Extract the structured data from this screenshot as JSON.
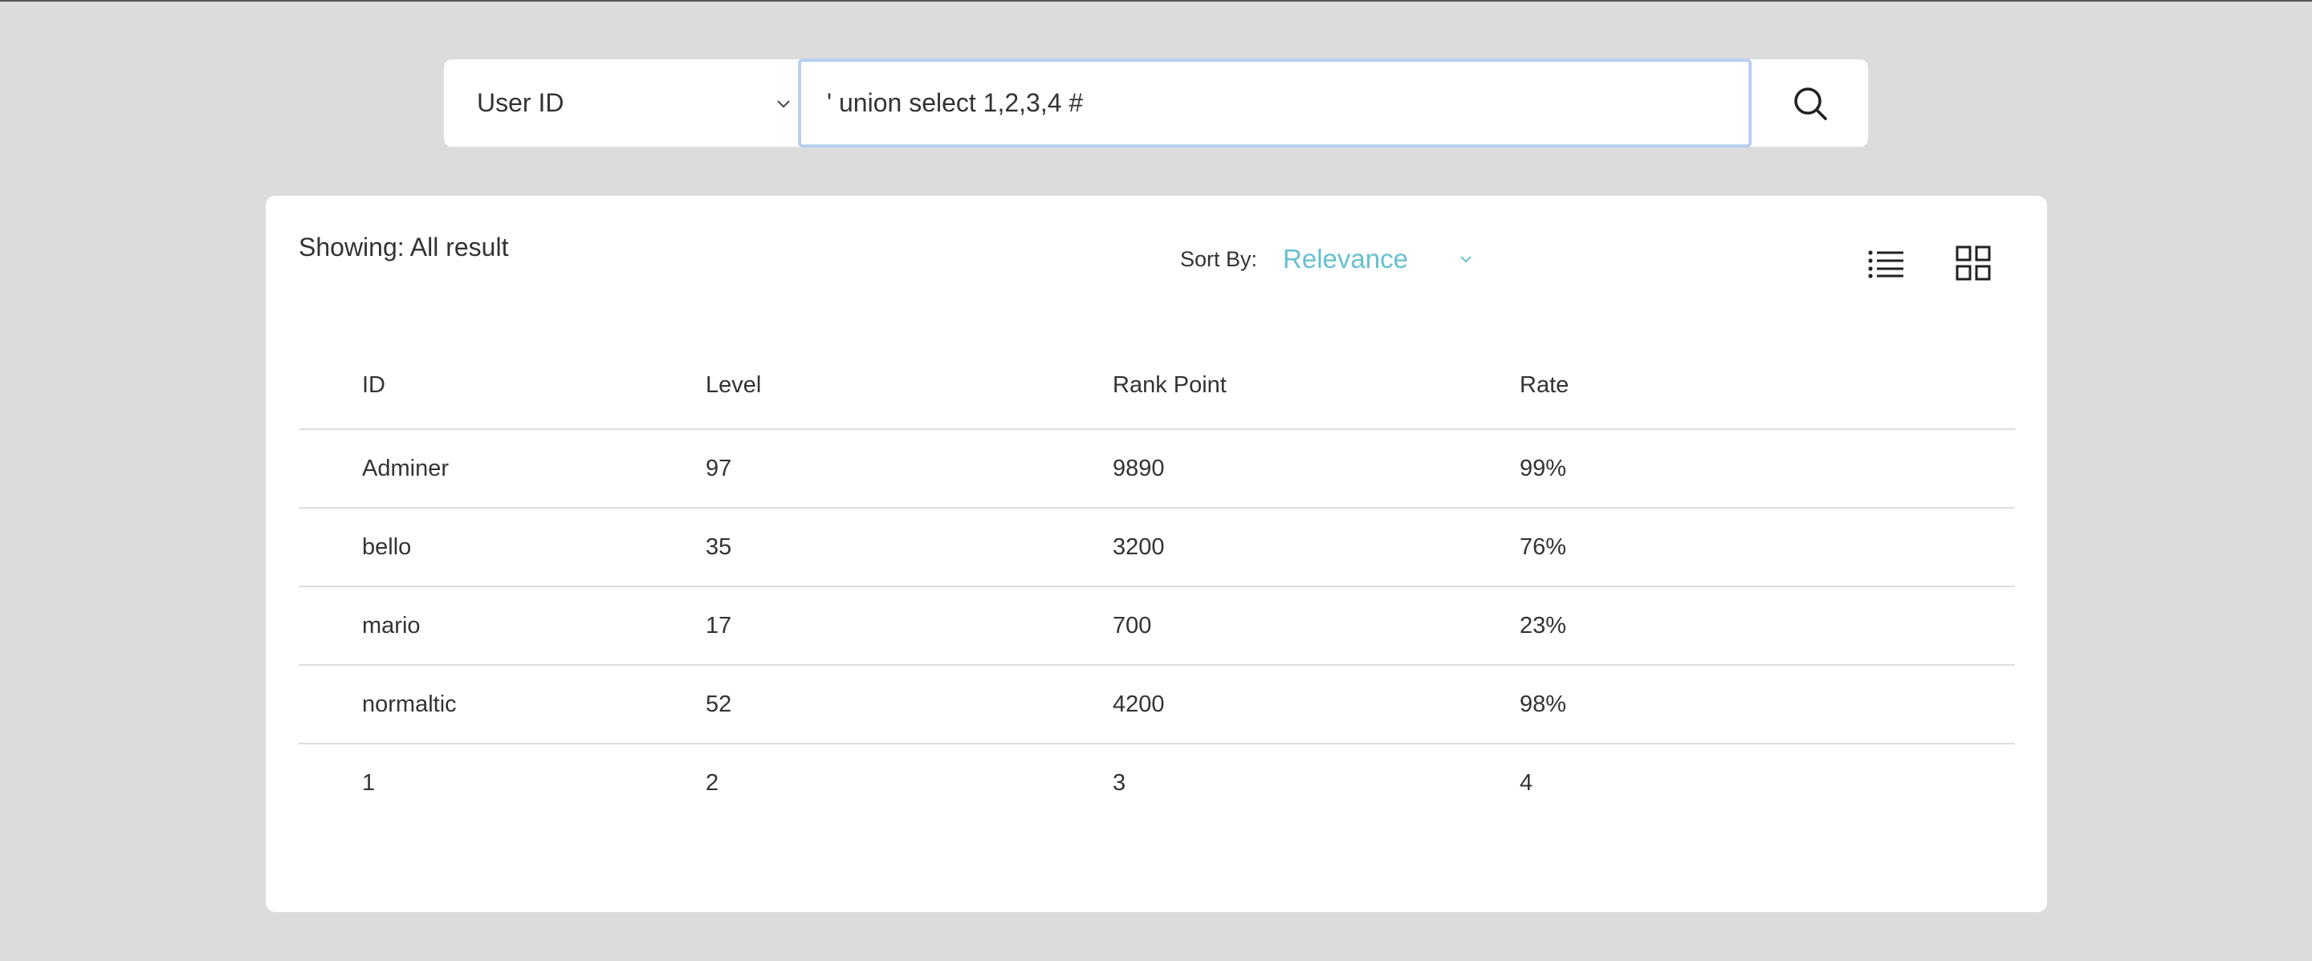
{
  "search": {
    "field_selected": "User ID",
    "query_value": "' union select 1,2,3,4 #",
    "search_icon": "search-icon"
  },
  "results": {
    "showing_text": "Showing: All result",
    "sort_label": "Sort By:",
    "sort_value": "Relevance",
    "sort_color": "#67c0cf",
    "view_icons": [
      "list-view-icon",
      "grid-view-icon"
    ],
    "columns": [
      "ID",
      "Level",
      "Rank Point",
      "Rate"
    ],
    "rows": [
      [
        "Adminer",
        "97",
        "9890",
        "99%"
      ],
      [
        "bello",
        "35",
        "3200",
        "76%"
      ],
      [
        "mario",
        "17",
        "700",
        "23%"
      ],
      [
        "normaltic",
        "52",
        "4200",
        "98%"
      ],
      [
        "1",
        "2",
        "3",
        "4"
      ]
    ]
  },
  "colors": {
    "page_background": "#dcdcdc",
    "card_background": "#ffffff",
    "input_focus_border": "#b9cef2",
    "text": "#333333",
    "accent": "#67c0cf"
  }
}
